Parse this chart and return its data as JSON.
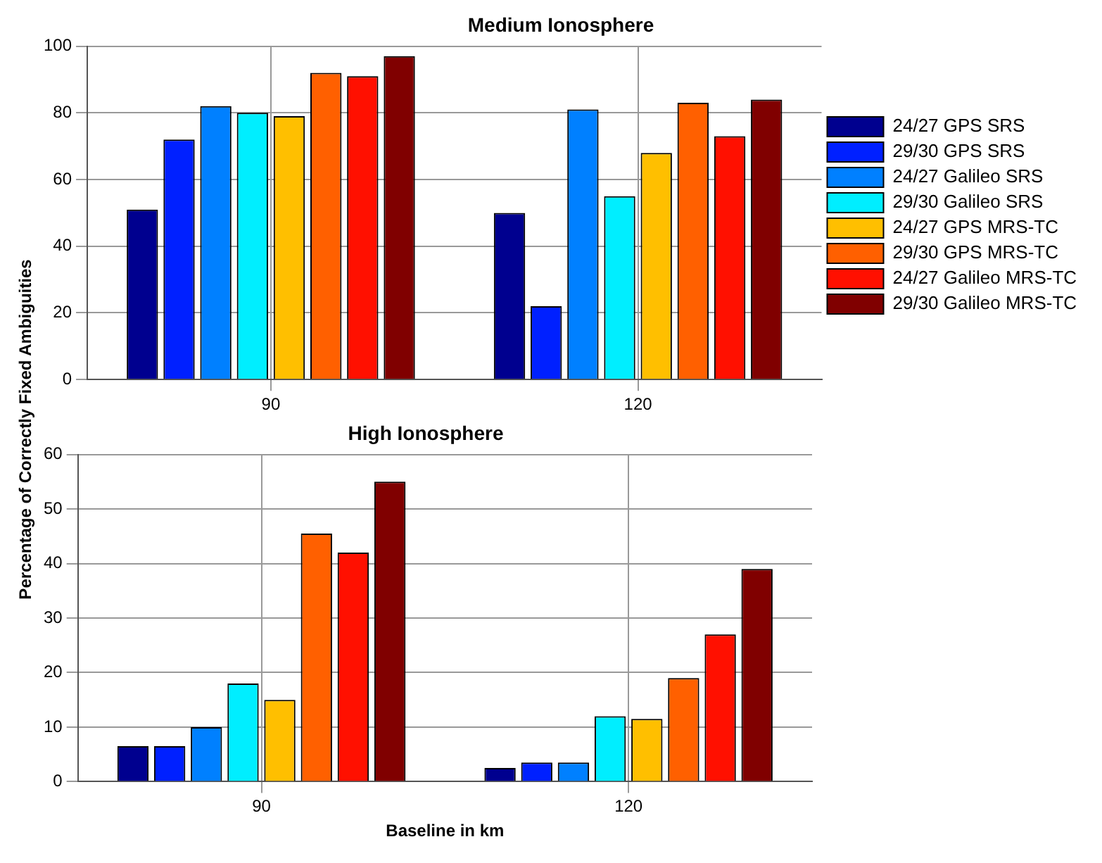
{
  "chart_data": [
    {
      "type": "bar",
      "title": "Medium Ionosphere",
      "ylabel": "Percentage of Correctly Fixed Ambiguities",
      "categories": [
        "90",
        "120"
      ],
      "ylim": [
        0,
        100
      ],
      "yticks": [
        0,
        20,
        40,
        60,
        80,
        100
      ],
      "grid": true,
      "legend": "right",
      "series": [
        {
          "name": "24/27 GPS SRS",
          "color": "#00008f",
          "values": [
            51,
            50
          ]
        },
        {
          "name": "29/30 GPS SRS",
          "color": "#0020ff",
          "values": [
            72,
            22
          ]
        },
        {
          "name": "24/27 Galileo SRS",
          "color": "#0080ff",
          "values": [
            82,
            81
          ]
        },
        {
          "name": "29/30 Galileo SRS",
          "color": "#00eeff",
          "values": [
            80,
            55
          ]
        },
        {
          "name": "24/27 GPS MRS-TC",
          "color": "#ffbf00",
          "values": [
            79,
            68
          ]
        },
        {
          "name": "29/30 GPS MRS-TC",
          "color": "#ff6000",
          "values": [
            92,
            83
          ]
        },
        {
          "name": "24/27 Galileo MRS-TC",
          "color": "#ff1000",
          "values": [
            91,
            73
          ]
        },
        {
          "name": "29/30 Galileo MRS-TC",
          "color": "#800000",
          "values": [
            97,
            84
          ]
        }
      ]
    },
    {
      "type": "bar",
      "title": "High Ionosphere",
      "xlabel": "Baseline in km",
      "categories": [
        "90",
        "120"
      ],
      "ylim": [
        0,
        60
      ],
      "yticks": [
        0,
        10,
        20,
        30,
        40,
        50,
        60
      ],
      "grid": true,
      "series": [
        {
          "color": "#00008f",
          "values": [
            6.5,
            2.5
          ]
        },
        {
          "color": "#0020ff",
          "values": [
            6.5,
            3.5
          ]
        },
        {
          "color": "#0080ff",
          "values": [
            10,
            3.5
          ]
        },
        {
          "color": "#00eeff",
          "values": [
            18,
            12
          ]
        },
        {
          "color": "#ffbf00",
          "values": [
            15,
            11.5
          ]
        },
        {
          "color": "#ff6000",
          "values": [
            45.5,
            19
          ]
        },
        {
          "color": "#ff1000",
          "values": [
            42,
            27
          ]
        },
        {
          "color": "#800000",
          "values": [
            55,
            39
          ]
        }
      ]
    }
  ]
}
